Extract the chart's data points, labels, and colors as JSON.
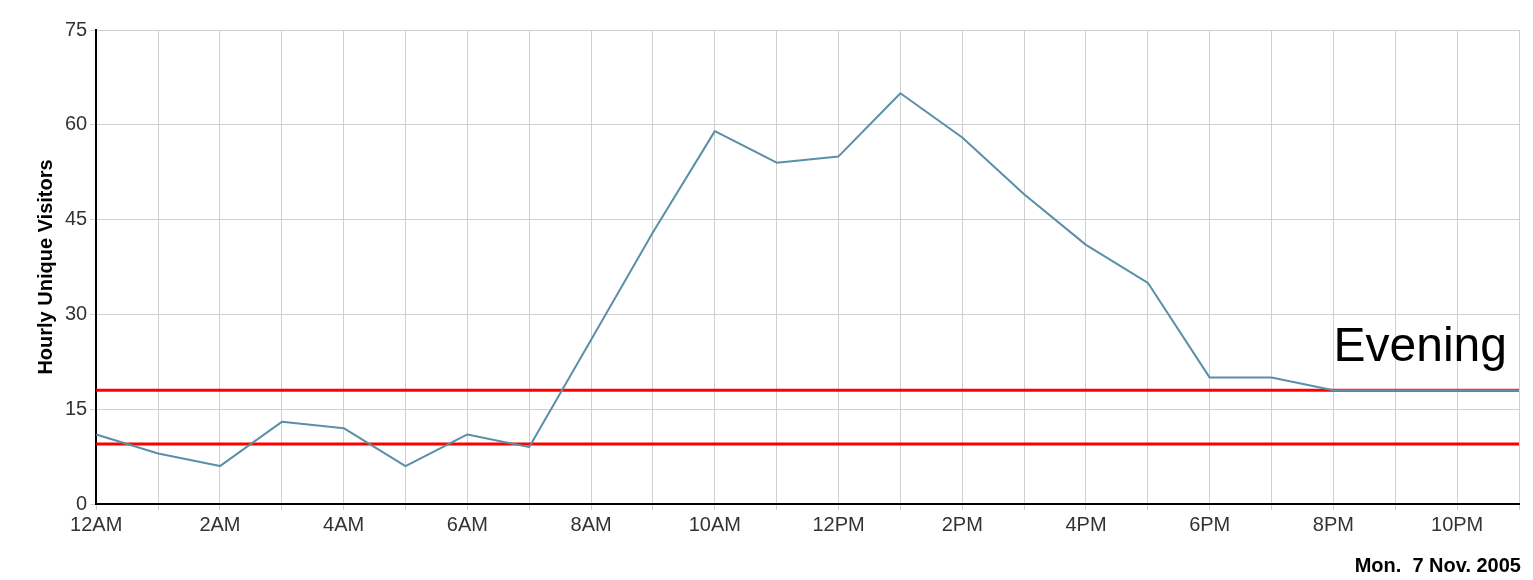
{
  "chart_data": {
    "type": "line",
    "ylabel": "Hourly Unique Visitors",
    "categories": [
      "12AM",
      null,
      "2AM",
      null,
      "4AM",
      null,
      "6AM",
      null,
      "8AM",
      null,
      "10AM",
      null,
      "12PM",
      null,
      "2PM",
      null,
      "4PM",
      null,
      "6PM",
      null,
      "8PM",
      null,
      "10PM",
      null
    ],
    "series": [
      {
        "color": "#5b8fa8",
        "values": [
          11,
          8,
          6,
          13,
          12,
          6,
          11,
          9,
          26,
          43,
          59,
          54,
          55,
          65,
          58,
          49,
          41,
          35,
          20,
          20,
          18,
          18,
          18,
          18
        ]
      }
    ],
    "ylim": [
      0,
      75
    ],
    "yticks": [
      0,
      15,
      30,
      45,
      60,
      75
    ],
    "grid": true,
    "legend": false,
    "marker": "none",
    "line_style": "solid",
    "ref_lines": [
      {
        "axis": "y",
        "value": 18,
        "label": "Evening",
        "color": "#ff0000"
      },
      {
        "axis": "y",
        "value": 9.5,
        "color": "#ff0000"
      }
    ],
    "annotations": [
      "Mon.  7 Nov. 2005"
    ]
  }
}
